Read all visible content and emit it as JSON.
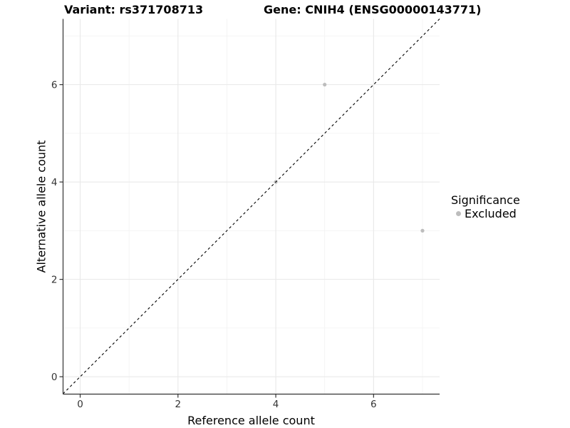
{
  "title": {
    "left": "Variant: rs371708713",
    "right": "Gene: CNIH4 (ENSG00000143771)"
  },
  "chart_data": {
    "type": "scatter",
    "xlabel": "Reference allele count",
    "ylabel": "Alternative allele count",
    "xlim": [
      -0.35,
      7.35
    ],
    "ylim": [
      -0.35,
      7.35
    ],
    "x_ticks": [
      0,
      2,
      4,
      6
    ],
    "y_ticks": [
      0,
      2,
      4,
      6
    ],
    "x_minor_ticks": [
      1,
      3,
      5,
      7
    ],
    "y_minor_ticks": [
      1,
      3,
      5,
      7
    ],
    "grid": true,
    "identity_line": {
      "type": "dashed",
      "slope": 1,
      "intercept": 0,
      "color": "#000000"
    },
    "series": [
      {
        "name": "Excluded",
        "color": "#bdbdbd",
        "points": [
          {
            "x": 4,
            "y": 4
          },
          {
            "x": 5,
            "y": 6
          },
          {
            "x": 7,
            "y": 3
          }
        ]
      }
    ],
    "legend": {
      "title": "Significance",
      "position": "right",
      "items": [
        {
          "label": "Excluded",
          "color": "#bdbdbd"
        }
      ]
    }
  },
  "colors": {
    "background": "#ffffff",
    "axis_line": "#333333",
    "tick_label": "#333333",
    "major_grid": "#e8e8e8",
    "minor_grid": "#f2f2f2",
    "point": "#bdbdbd",
    "identity_line": "#000000"
  }
}
